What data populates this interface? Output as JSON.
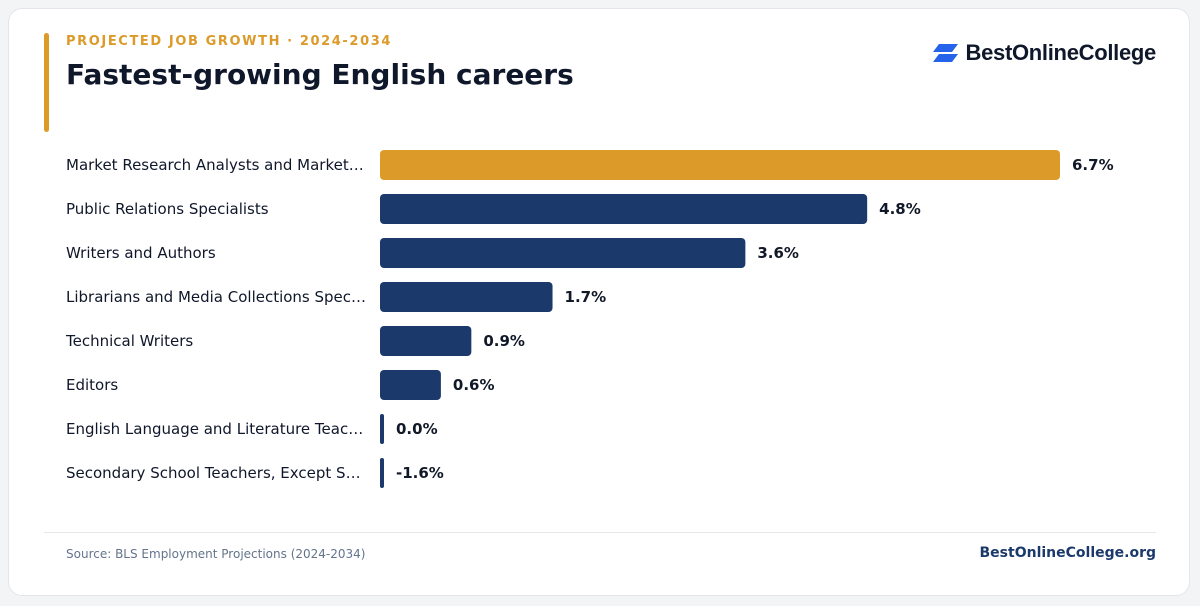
{
  "header": {
    "eyebrow": "PROJECTED JOB GROWTH · 2024-2034",
    "title": "Fastest-growing English careers"
  },
  "brand": {
    "name": "BestOnlineCollege",
    "icon": "brand-logo-icon"
  },
  "footer": {
    "source": "Source: BLS Employment Projections (2024-2034)",
    "site": "BestOnlineCollege.org"
  },
  "colors": {
    "highlight": "#dc9a28",
    "bar": "#1b3a6b",
    "logo": "#2563eb",
    "label": "#0f172a"
  },
  "chart_data": {
    "type": "bar",
    "orientation": "horizontal",
    "categories": [
      "Market Research Analysts and Market…",
      "Public Relations Specialists",
      "Writers and Authors",
      "Librarians and Media Collections Spec…",
      "Technical Writers",
      "Editors",
      "English Language and Literature Teac…",
      "Secondary School Teachers, Except S…"
    ],
    "values": [
      6.7,
      4.8,
      3.6,
      1.7,
      0.9,
      0.6,
      0.0,
      -1.6
    ],
    "value_labels": [
      "6.7%",
      "4.8%",
      "3.6%",
      "1.7%",
      "0.9%",
      "0.6%",
      "0.0%",
      "-1.6%"
    ],
    "highlighted_index": 0,
    "xlim": [
      0,
      6.7
    ],
    "grid": false,
    "legend": false
  }
}
